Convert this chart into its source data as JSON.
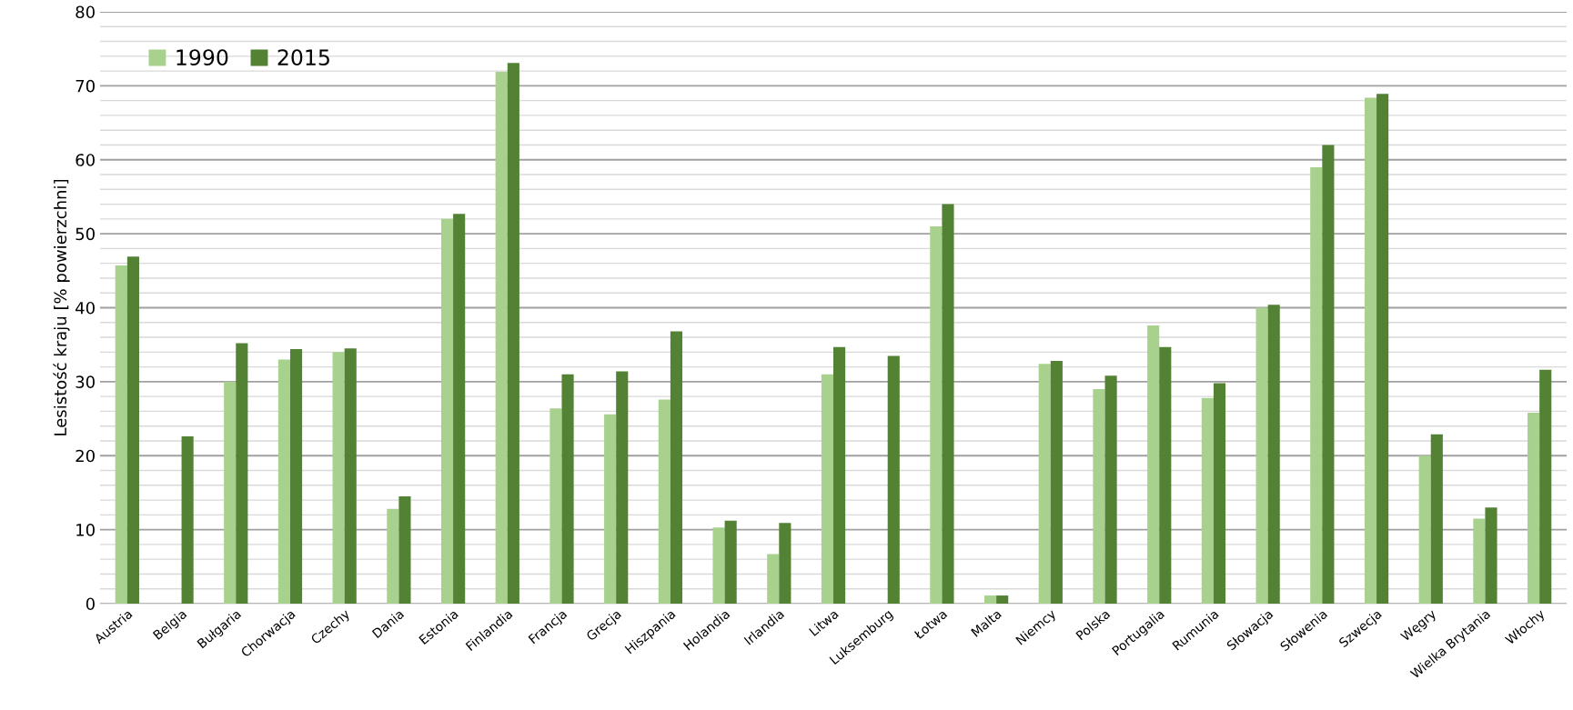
{
  "chart_data": {
    "type": "bar",
    "ylabel": "Lesistość kraju [% powierzchni]",
    "categories": [
      "Austria",
      "Belgia",
      "Bułgaria",
      "Chorwacja",
      "Czechy",
      "Dania",
      "Estonia",
      "Finlandia",
      "Francja",
      "Grecja",
      "Hiszpania",
      "Holandia",
      "Irlandia",
      "Litwa",
      "Luksemburg",
      "Łotwa",
      "Malta",
      "Niemcy",
      "Polska",
      "Portugalia",
      "Rumunia",
      "Słowacja",
      "Słowenia",
      "Szwecja",
      "Węgry",
      "Wielka Brytania",
      "Włochy"
    ],
    "series": [
      {
        "name": "1990",
        "color": "#a9d18e",
        "values": [
          45.7,
          null,
          30.0,
          33.0,
          34.0,
          12.8,
          52.0,
          71.9,
          26.4,
          25.6,
          27.6,
          10.3,
          6.7,
          31.0,
          null,
          51.0,
          1.1,
          32.4,
          29.0,
          37.6,
          27.8,
          40.0,
          59.0,
          68.4,
          20.0,
          11.5,
          25.8
        ]
      },
      {
        "name": "2015",
        "color": "#548235",
        "values": [
          46.9,
          22.6,
          35.2,
          34.4,
          34.5,
          14.5,
          52.7,
          73.1,
          31.0,
          31.4,
          36.8,
          11.2,
          10.9,
          34.7,
          33.5,
          54.0,
          1.1,
          32.8,
          30.8,
          34.7,
          29.8,
          40.4,
          62.0,
          68.9,
          22.9,
          13.0,
          31.6
        ]
      }
    ],
    "ylim": [
      0,
      80
    ],
    "yticks": [
      0,
      {
        "value": 2,
        "label": null
      },
      {
        "value": 4,
        "label": null
      },
      {
        "value": 6,
        "label": null
      },
      {
        "value": 8,
        "label": null
      },
      10,
      {
        "value": 12,
        "label": null
      },
      {
        "value": 14,
        "label": null
      },
      {
        "value": 16,
        "label": null
      },
      {
        "value": 18,
        "label": null
      },
      20,
      {
        "value": 22,
        "label": null
      },
      {
        "value": 24,
        "label": null
      },
      {
        "value": 26,
        "label": null
      },
      {
        "value": 28,
        "label": null
      },
      30,
      {
        "value": 32,
        "label": null
      },
      {
        "value": 34,
        "label": null
      },
      {
        "value": 36,
        "label": null
      },
      {
        "value": 38,
        "label": null
      },
      40,
      {
        "value": 42,
        "label": null
      },
      {
        "value": 44,
        "label": null
      },
      {
        "value": 46,
        "label": null
      },
      {
        "value": 48,
        "label": null
      },
      50,
      {
        "value": 52,
        "label": null
      },
      {
        "value": 54,
        "label": null
      },
      {
        "value": 56,
        "label": null
      },
      {
        "value": 58,
        "label": null
      },
      60,
      {
        "value": 62,
        "label": null
      },
      {
        "value": 64,
        "label": null
      },
      {
        "value": 66,
        "label": null
      },
      {
        "value": 68,
        "label": null
      },
      70,
      {
        "value": 72,
        "label": null
      },
      {
        "value": 74,
        "label": null
      },
      {
        "value": 76,
        "label": null
      },
      {
        "value": 78,
        "label": null
      },
      80
    ],
    "grid": "y",
    "legend": "top left"
  }
}
